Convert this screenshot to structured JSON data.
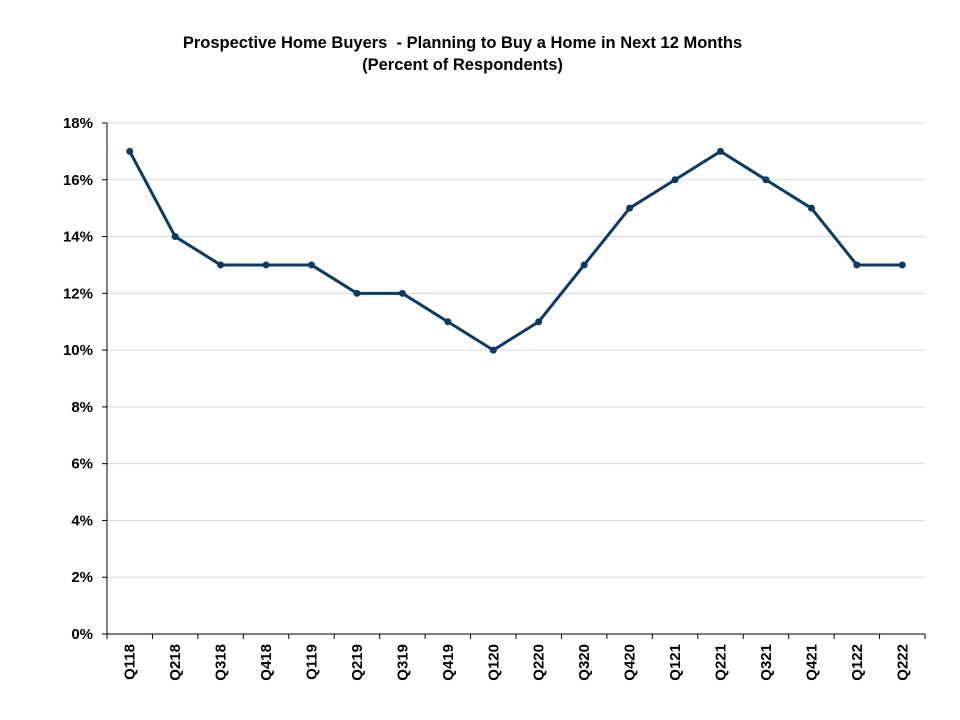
{
  "chart_data": {
    "type": "line",
    "title": "Prospective Home Buyers  - Planning to Buy a Home in Next 12 Months",
    "subtitle": "(Percent of Respondents)",
    "xlabel": "",
    "ylabel": "",
    "categories": [
      "Q118",
      "Q218",
      "Q318",
      "Q418",
      "Q119",
      "Q219",
      "Q319",
      "Q419",
      "Q120",
      "Q220",
      "Q320",
      "Q420",
      "Q121",
      "Q221",
      "Q321",
      "Q421",
      "Q122",
      "Q222"
    ],
    "series": [
      {
        "values": [
          17,
          14,
          13,
          13,
          13,
          12,
          12,
          11,
          10,
          11,
          13,
          15,
          16,
          17,
          16,
          15,
          13,
          13
        ]
      }
    ],
    "ylim": [
      0,
      18
    ],
    "yticks": [
      0,
      2,
      4,
      6,
      8,
      10,
      12,
      14,
      16,
      18
    ],
    "ytick_labels": [
      "0%",
      "2%",
      "4%",
      "6%",
      "8%",
      "10%",
      "12%",
      "14%",
      "16%",
      "18%"
    ],
    "grid": "horizontal",
    "legend": "none",
    "line_color": "#0b3a63",
    "grid_color": "#d9d9d9"
  }
}
